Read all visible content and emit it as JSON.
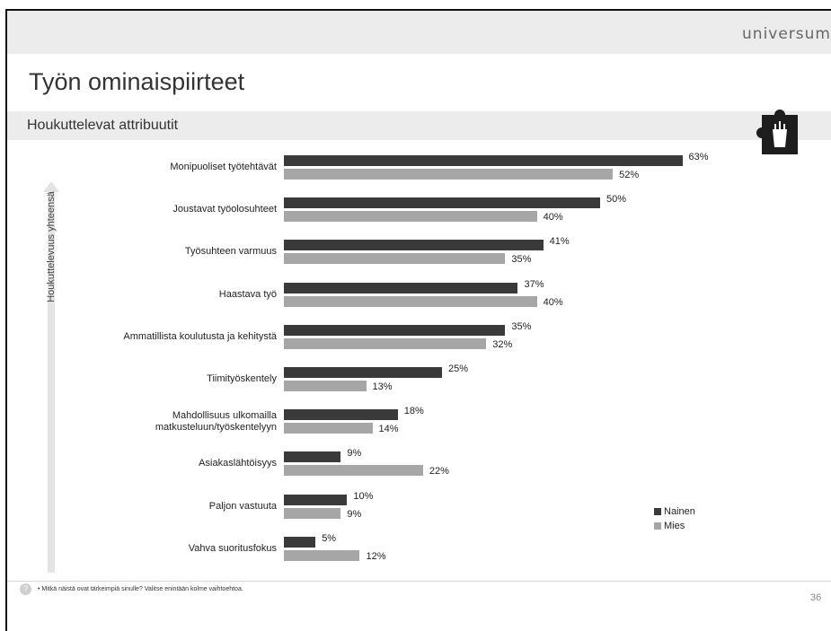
{
  "header": {
    "brand": "universum",
    "title": "Työn ominaispiirteet",
    "subtitle": "Houkuttelevat attribuutit"
  },
  "axis": {
    "label": "Houkuttelevuus yhteensä"
  },
  "chart_data": {
    "type": "bar",
    "orientation": "horizontal",
    "categories": [
      "Monipuoliset työtehtävät",
      "Joustavat työolosuhteet",
      "Työsuhteen varmuus",
      "Haastava työ",
      "Ammatillista koulutusta ja kehitystä",
      "Tiimityöskentely",
      "Mahdollisuus ulkomailla\nmatkusteluun/työskentelyyn",
      "Asiakaslähtöisyys",
      "Paljon vastuuta",
      "Vahva suoritusfokus"
    ],
    "series": [
      {
        "name": "Nainen",
        "color": "#3a3a3a",
        "values": [
          63,
          50,
          41,
          37,
          35,
          25,
          18,
          9,
          10,
          5
        ]
      },
      {
        "name": "Mies",
        "color": "#a6a6a6",
        "values": [
          52,
          40,
          35,
          40,
          32,
          13,
          14,
          22,
          9,
          12
        ]
      }
    ],
    "value_suffix": "%",
    "xlim": [
      0,
      80
    ],
    "grid": false,
    "legend_position": "bottom-right"
  },
  "footer": {
    "icon": "question-icon",
    "icon_text": "?",
    "note": "•  Mitkä näistä ovat tärkeimpiä sinulle? Valitse enintään kolme vaihtoehtoa.",
    "page_number": "36"
  }
}
